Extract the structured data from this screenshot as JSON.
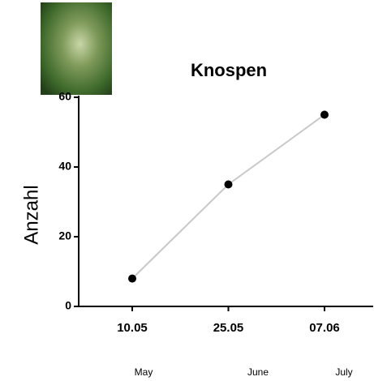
{
  "chart_data": {
    "type": "line",
    "title": "Knospen",
    "y_label": "Anzahl",
    "categories": [
      "10.05",
      "25.05",
      "07.06"
    ],
    "month_labels": [
      "May",
      "June",
      "July"
    ],
    "values": [
      8,
      35,
      55
    ],
    "line_color": "#c8c8c8",
    "marker_color": "#000000",
    "ylim": [
      0,
      60
    ],
    "yticks": [
      0,
      20,
      40,
      60
    ]
  }
}
